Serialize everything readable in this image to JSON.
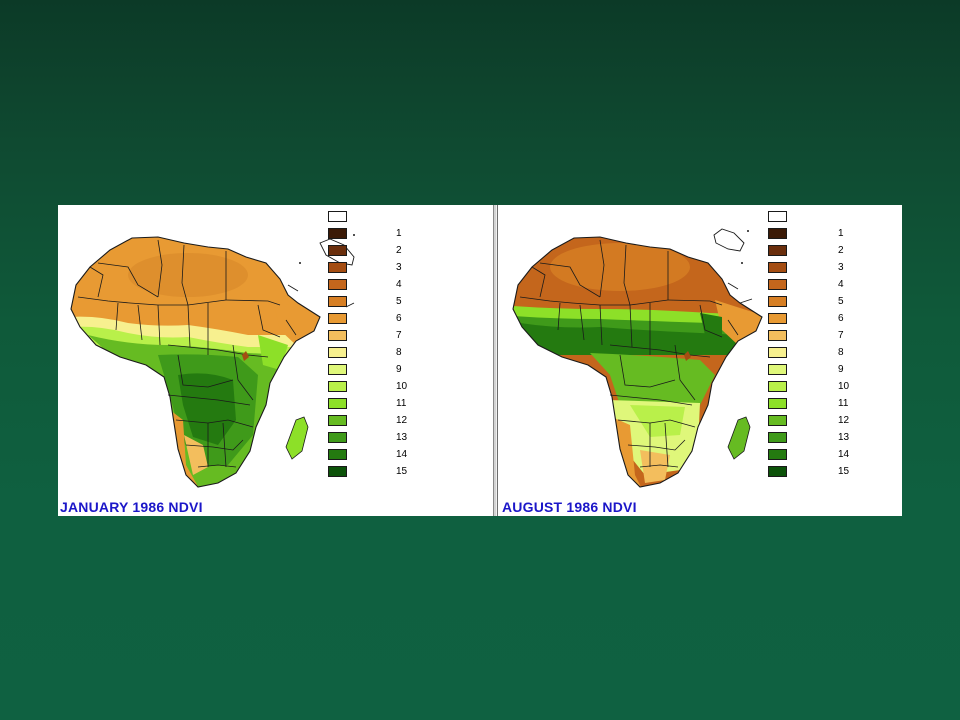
{
  "maps": [
    {
      "title": "JANUARY 1986 NDVI",
      "season": "january"
    },
    {
      "title": "AUGUST 1986 NDVI",
      "season": "august"
    }
  ],
  "legend": {
    "labels": [
      "",
      "1",
      "2",
      "3",
      "4",
      "5",
      "6",
      "7",
      "8",
      "9",
      "10",
      "11",
      "12",
      "13",
      "14",
      "15"
    ],
    "colors": [
      "#ffffff",
      "#3b1a06",
      "#6a2e0c",
      "#a44d12",
      "#c4661c",
      "#d77f24",
      "#e89a33",
      "#f3be5d",
      "#f7f08f",
      "#dff77a",
      "#b9f04a",
      "#8de028",
      "#66bb22",
      "#3f9a1a",
      "#247a10",
      "#0c5209"
    ]
  },
  "colors": {
    "background_top": "#0c3a27",
    "background_bottom": "#0f6141",
    "title_text": "#1b16c8"
  }
}
